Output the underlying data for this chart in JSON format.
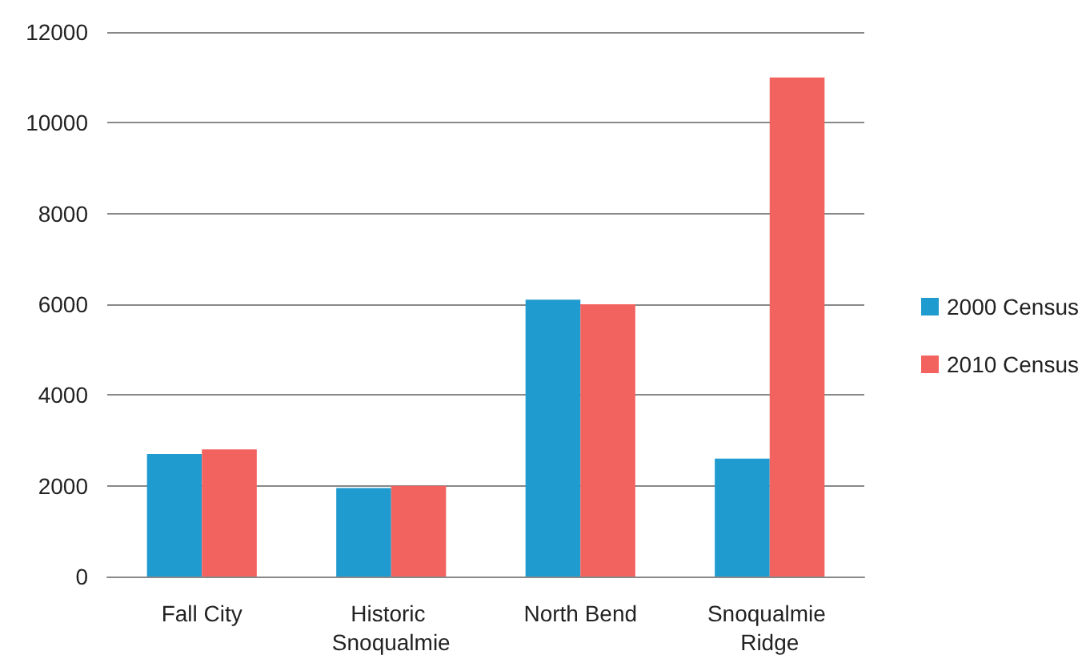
{
  "chart_data": {
    "type": "bar",
    "categories": [
      "Fall City",
      "Historic Snoqualmie",
      "North Bend",
      "Snoqualmie Ridge"
    ],
    "series": [
      {
        "name": "2000 Census",
        "color": "#1f9bcf",
        "values": [
          2700,
          1950,
          6100,
          2600
        ]
      },
      {
        "name": "2010 Census",
        "color": "#f2635f",
        "values": [
          2800,
          2000,
          6000,
          11000
        ]
      }
    ],
    "ylim": [
      0,
      12000
    ],
    "yticks": [
      0,
      2000,
      4000,
      6000,
      8000,
      10000,
      12000
    ],
    "grid": "y",
    "legend": "right"
  }
}
